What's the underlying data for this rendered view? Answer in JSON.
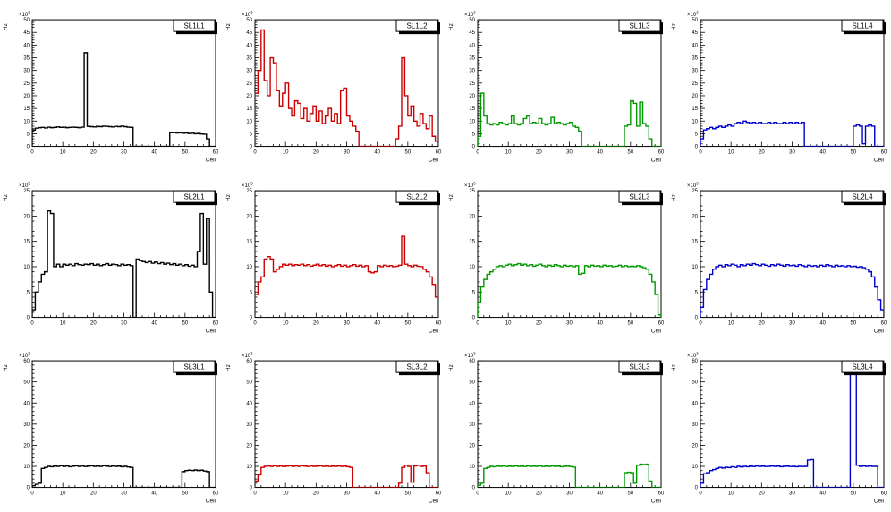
{
  "figure": {
    "background": "#ffffff",
    "grid": {
      "rows": 3,
      "cols": 4
    }
  },
  "chart_data": [
    {
      "type": "bar",
      "title": "SL1L1",
      "color": "#000000",
      "xlabel": "Cell",
      "ylabel": "Hz",
      "scale": "×10³",
      "x": {
        "min": 0,
        "max": 60,
        "tick": 10
      },
      "ylim": [
        0,
        50
      ],
      "ytick": 5,
      "values": [
        6.5,
        7.2,
        7.4,
        7.5,
        7.3,
        7.6,
        7.4,
        7.5,
        7.7,
        7.5,
        7.6,
        7.4,
        7.5,
        7.6,
        7.5,
        7.4,
        7.6,
        37,
        7.9,
        7.8,
        7.7,
        7.9,
        7.8,
        8,
        7.9,
        7.8,
        7.7,
        7.9,
        7.8,
        8,
        7.8,
        7.6,
        7.5,
        0,
        0,
        0,
        0,
        0,
        0,
        0,
        0,
        0,
        0,
        0,
        0,
        5.4,
        5.5,
        5.3,
        5.4,
        5.2,
        5.3,
        5.1,
        5.2,
        5,
        5.1,
        4.9,
        4.8,
        3,
        0,
        0
      ]
    },
    {
      "type": "bar",
      "title": "SL1L2",
      "color": "#cc0000",
      "xlabel": "Cell",
      "ylabel": "Hz",
      "scale": "×10³",
      "x": {
        "min": 0,
        "max": 60,
        "tick": 10
      },
      "ylim": [
        0,
        50
      ],
      "ytick": 5,
      "values": [
        21,
        30,
        46,
        26,
        20,
        35,
        33,
        22,
        16,
        21,
        25,
        15,
        12,
        18,
        17,
        11,
        15,
        10,
        13,
        16,
        10,
        14,
        9,
        12,
        15,
        10,
        13,
        9,
        22,
        23,
        12,
        10,
        8,
        6,
        0,
        0,
        0,
        0,
        0,
        0,
        0,
        0,
        0,
        0,
        0,
        0,
        3,
        8,
        35,
        20,
        12,
        16,
        10,
        8,
        13,
        9,
        7,
        12,
        4,
        2
      ]
    },
    {
      "type": "bar",
      "title": "SL1L3",
      "color": "#009900",
      "xlabel": "Cell",
      "ylabel": "Hz",
      "scale": "×10³",
      "x": {
        "min": 0,
        "max": 60,
        "tick": 10
      },
      "ylim": [
        0,
        50
      ],
      "ytick": 5,
      "values": [
        4,
        21,
        12,
        9,
        8.5,
        9,
        8.5,
        9.5,
        9,
        8.5,
        9,
        12,
        9,
        8.5,
        9,
        11,
        12,
        9,
        9.5,
        9,
        11,
        9,
        8.5,
        9,
        11.5,
        9,
        9.5,
        9,
        8.5,
        9,
        9.5,
        8,
        7.5,
        6,
        0,
        0,
        0,
        0,
        0,
        0,
        0,
        0,
        0,
        0,
        0,
        0,
        0,
        0,
        8,
        8.5,
        18,
        17,
        8,
        17.5,
        9,
        8,
        3,
        0,
        0,
        0
      ]
    },
    {
      "type": "bar",
      "title": "SL1L4",
      "color": "#0000cc",
      "xlabel": "Cell",
      "ylabel": "Hz",
      "scale": "×10³",
      "x": {
        "min": 0,
        "max": 60,
        "tick": 10
      },
      "ylim": [
        0,
        50
      ],
      "ytick": 5,
      "values": [
        3,
        6.5,
        7,
        7.5,
        7,
        7.5,
        8,
        7.5,
        8,
        8.5,
        8,
        9,
        9.5,
        9,
        10,
        9.5,
        9,
        9.5,
        9,
        9.5,
        9,
        9,
        9.5,
        9,
        9.5,
        9,
        9,
        9.5,
        9,
        9.5,
        9,
        9.5,
        9,
        9.5,
        0,
        0,
        0,
        0,
        0,
        0,
        0,
        0,
        0,
        0,
        0,
        0,
        0,
        0,
        0,
        0,
        8,
        8.5,
        8,
        1,
        8,
        8.5,
        8,
        0,
        0,
        0
      ]
    },
    {
      "type": "bar",
      "title": "SL2L1",
      "color": "#000000",
      "xlabel": "Cell",
      "ylabel": "Hz",
      "scale": "×10³",
      "x": {
        "min": 0,
        "max": 60,
        "tick": 10
      },
      "ylim": [
        0,
        25
      ],
      "ytick": 5,
      "values": [
        1.5,
        5,
        7,
        8.5,
        9,
        21,
        20.5,
        10,
        10.5,
        10,
        10.5,
        10.3,
        10.5,
        10.2,
        10.6,
        10.4,
        10.3,
        10.5,
        10.4,
        10.6,
        10.3,
        10.5,
        10.2,
        10.4,
        10.6,
        10.3,
        10.5,
        10.4,
        10.2,
        10.5,
        10.3,
        10.4,
        10.2,
        0,
        11.5,
        11.2,
        11,
        10.8,
        11,
        10.7,
        10.9,
        10.6,
        10.8,
        10.5,
        10.7,
        10.4,
        10.6,
        10.3,
        10.5,
        10.2,
        10.4,
        10.1,
        10.3,
        10,
        13,
        20.5,
        10.5,
        19.5,
        5,
        0
      ]
    },
    {
      "type": "bar",
      "title": "SL2L2",
      "color": "#cc0000",
      "xlabel": "Cell",
      "ylabel": "Hz",
      "scale": "×10³",
      "x": {
        "min": 0,
        "max": 60,
        "tick": 10
      },
      "ylim": [
        0,
        25
      ],
      "ytick": 5,
      "values": [
        4.5,
        7,
        8,
        11.5,
        12,
        11.5,
        9,
        9.5,
        10,
        10.5,
        10.3,
        10.5,
        10.2,
        10.4,
        10.3,
        10.5,
        10.2,
        10.4,
        10.1,
        10.3,
        10.5,
        10.2,
        10.4,
        10.1,
        10.3,
        10,
        10.2,
        10.4,
        10.1,
        10.3,
        10,
        10.2,
        10.4,
        10.1,
        10.3,
        10,
        10.2,
        9,
        8.8,
        9,
        10.2,
        10,
        10.3,
        10.1,
        10.2,
        10,
        10.1,
        10.3,
        16,
        10.5,
        10.2,
        10,
        10.3,
        10.1,
        10,
        9.5,
        9,
        8,
        6.5,
        4
      ]
    },
    {
      "type": "bar",
      "title": "SL2L3",
      "color": "#009900",
      "xlabel": "Cell",
      "ylabel": "Hz",
      "scale": "×10³",
      "x": {
        "min": 0,
        "max": 60,
        "tick": 10
      },
      "ylim": [
        0,
        25
      ],
      "ytick": 5,
      "values": [
        3,
        6,
        7.5,
        8.5,
        9,
        9.5,
        10,
        10.2,
        10,
        10.3,
        10.5,
        10.2,
        10.4,
        10.6,
        10.3,
        10.5,
        10.2,
        10.4,
        10.1,
        10.3,
        10.5,
        10.2,
        10,
        10.3,
        10.1,
        10.4,
        10.2,
        10,
        10.3,
        10.1,
        10.2,
        10,
        10.2,
        8.5,
        8.7,
        10.2,
        10,
        10.3,
        10.1,
        10.2,
        10,
        10.3,
        10.1,
        10.2,
        10,
        10.1,
        10.3,
        10,
        10.2,
        10,
        10.1,
        10,
        10.2,
        10,
        9.8,
        9.5,
        8.5,
        7,
        4.5,
        0.5
      ]
    },
    {
      "type": "bar",
      "title": "SL2L4",
      "color": "#0000cc",
      "xlabel": "Cell",
      "ylabel": "Hz",
      "scale": "×10³",
      "x": {
        "min": 0,
        "max": 60,
        "tick": 10
      },
      "ylim": [
        0,
        25
      ],
      "ytick": 5,
      "values": [
        2,
        5.5,
        7.5,
        8.5,
        9.5,
        10,
        10.3,
        10,
        10.4,
        10.2,
        10.5,
        10.3,
        10,
        10.4,
        10.2,
        10.5,
        10.3,
        10.6,
        10.4,
        10.2,
        10.5,
        10.3,
        10.1,
        10.4,
        10.2,
        10.5,
        10.3,
        10.1,
        10.4,
        10.2,
        10.3,
        10.1,
        10.4,
        10.2,
        10,
        10.3,
        10.1,
        10.2,
        10,
        10.3,
        10.1,
        10.4,
        10.2,
        10,
        10.3,
        10.1,
        10.2,
        10,
        10.2,
        10,
        10.1,
        9.9,
        10,
        9.8,
        9.5,
        9,
        8,
        6,
        3.5,
        1.5
      ]
    },
    {
      "type": "bar",
      "title": "SL3L1",
      "color": "#000000",
      "xlabel": "Cell",
      "ylabel": "Hz",
      "scale": "×10³",
      "x": {
        "min": 0,
        "max": 60,
        "tick": 10
      },
      "ylim": [
        0,
        60
      ],
      "ytick": 10,
      "values": [
        0.8,
        1.5,
        2,
        9,
        9.5,
        10,
        9.8,
        10.2,
        10,
        10.3,
        10,
        10.2,
        9.8,
        10.1,
        10.3,
        10,
        10.2,
        9.9,
        10.1,
        10.3,
        10,
        10.2,
        10,
        10.3,
        10.1,
        9.9,
        10.2,
        10,
        10.1,
        9.8,
        10,
        9.7,
        9.5,
        0,
        0,
        0,
        0,
        0,
        0,
        0,
        0,
        0,
        0,
        0,
        0,
        0,
        0,
        0,
        0,
        7.5,
        8,
        8.2,
        8,
        8.3,
        8,
        8.2,
        7.8,
        7.5,
        0,
        0
      ]
    },
    {
      "type": "bar",
      "title": "SL3L2",
      "color": "#cc0000",
      "xlabel": "Cell",
      "ylabel": "Hz",
      "scale": "×10³",
      "x": {
        "min": 0,
        "max": 60,
        "tick": 10
      },
      "ylim": [
        0,
        60
      ],
      "ytick": 10,
      "values": [
        3,
        6,
        9.5,
        10,
        10.2,
        10,
        10.3,
        10,
        10.2,
        9.9,
        10.1,
        10.3,
        10,
        10.2,
        10,
        10.3,
        10.1,
        9.9,
        10.2,
        10,
        10.1,
        10.3,
        10,
        10.2,
        9.9,
        10.1,
        10,
        10.2,
        10,
        10.1,
        9.8,
        9.5,
        0,
        0,
        0,
        0,
        0,
        0,
        0,
        0,
        0,
        0,
        0,
        0,
        0,
        0,
        0,
        2,
        9.5,
        10.5,
        10,
        2.5,
        10.2,
        10.5,
        10,
        10.2,
        7,
        0,
        0,
        0
      ]
    },
    {
      "type": "bar",
      "title": "SL3L3",
      "color": "#009900",
      "xlabel": "Cell",
      "ylabel": "Hz",
      "scale": "×10³",
      "x": {
        "min": 0,
        "max": 60,
        "tick": 10
      },
      "ylim": [
        0,
        60
      ],
      "ytick": 10,
      "values": [
        1,
        2,
        9,
        9.5,
        10,
        9.8,
        10.1,
        10,
        10.2,
        9.9,
        10.1,
        10,
        10.2,
        10,
        10.1,
        9.9,
        10.2,
        10,
        10.1,
        10,
        10.2,
        9.9,
        10.1,
        10,
        10.2,
        10,
        10.1,
        9.8,
        10,
        10.1,
        9.9,
        9.6,
        0,
        0,
        0,
        0,
        0,
        0,
        0,
        0,
        0,
        0,
        0,
        0,
        0,
        0,
        0,
        0,
        7,
        7.2,
        7,
        2,
        10.5,
        11,
        10.8,
        11,
        3,
        0,
        0,
        0
      ]
    },
    {
      "type": "bar",
      "title": "SL3L4",
      "color": "#0000cc",
      "xlabel": "Cell",
      "ylabel": "Hz",
      "scale": "×10³",
      "x": {
        "min": 0,
        "max": 60,
        "tick": 10
      },
      "ylim": [
        0,
        60
      ],
      "ytick": 10,
      "values": [
        2,
        6.5,
        7,
        8,
        8.5,
        9,
        9.5,
        9.2,
        9.6,
        9.4,
        9.8,
        9.5,
        10,
        9.7,
        10,
        9.8,
        10.1,
        9.9,
        10.2,
        10,
        10.1,
        9.9,
        10,
        10.2,
        10,
        10.1,
        9.8,
        10,
        10.1,
        9.9,
        10,
        9.8,
        10,
        9.9,
        10,
        13,
        13.2,
        0,
        0,
        0,
        0,
        0,
        0,
        0,
        0,
        0,
        0,
        0,
        0,
        57,
        56,
        10.5,
        10,
        10.2,
        10,
        10.3,
        10,
        10,
        0,
        0
      ]
    }
  ]
}
